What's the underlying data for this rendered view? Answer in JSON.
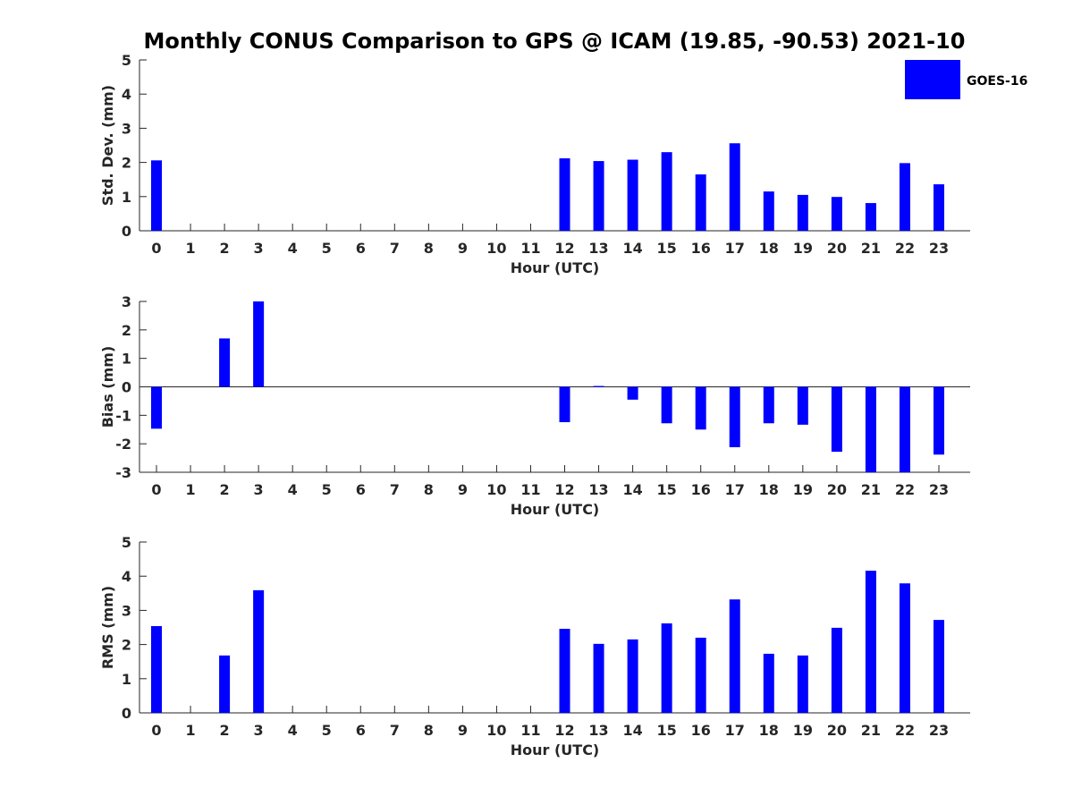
{
  "figure": {
    "title": "Monthly CONUS Comparison to GPS @ ICAM (19.85, -90.53) 2021-10",
    "legend": {
      "label": "GOES-16",
      "color": "#0000ff",
      "placement": "top-right"
    }
  },
  "chart_data": [
    {
      "type": "bar",
      "series": [
        {
          "name": "GOES-16",
          "color": "#0000ff",
          "values": [
            2.06,
            null,
            null,
            null,
            null,
            null,
            null,
            null,
            null,
            null,
            null,
            null,
            2.12,
            2.04,
            2.08,
            2.3,
            1.65,
            2.56,
            1.15,
            1.05,
            0.99,
            0.81,
            1.98,
            1.36
          ]
        }
      ],
      "categories": [
        "0",
        "1",
        "2",
        "3",
        "4",
        "5",
        "6",
        "7",
        "8",
        "9",
        "10",
        "11",
        "12",
        "13",
        "14",
        "15",
        "16",
        "17",
        "18",
        "19",
        "20",
        "21",
        "22",
        "23"
      ],
      "xlabel": "Hour (UTC)",
      "ylabel": "Std. Dev. (mm)",
      "ylim": [
        0,
        5
      ],
      "yticks": [
        "0",
        "1",
        "2",
        "3",
        "4",
        "5"
      ]
    },
    {
      "type": "bar",
      "series": [
        {
          "name": "GOES-16",
          "color": "#0000ff",
          "values": [
            -1.47,
            null,
            1.7,
            3.0,
            null,
            null,
            null,
            null,
            null,
            null,
            null,
            null,
            -1.24,
            0.03,
            -0.45,
            -1.28,
            -1.5,
            -2.12,
            -1.28,
            -1.33,
            -2.28,
            -3.0,
            -3.0,
            -2.38
          ]
        }
      ],
      "categories": [
        "0",
        "1",
        "2",
        "3",
        "4",
        "5",
        "6",
        "7",
        "8",
        "9",
        "10",
        "11",
        "12",
        "13",
        "14",
        "15",
        "16",
        "17",
        "18",
        "19",
        "20",
        "21",
        "22",
        "23"
      ],
      "xlabel": "Hour (UTC)",
      "ylabel": "Bias (mm)",
      "ylim": [
        -3,
        3
      ],
      "yticks": [
        "-3",
        "-2",
        "-1",
        "0",
        "1",
        "2",
        "3"
      ]
    },
    {
      "type": "bar",
      "series": [
        {
          "name": "GOES-16",
          "color": "#0000ff",
          "values": [
            2.54,
            null,
            1.68,
            3.59,
            null,
            null,
            null,
            null,
            null,
            null,
            null,
            null,
            2.46,
            2.02,
            2.15,
            2.62,
            2.2,
            3.32,
            1.73,
            1.68,
            2.49,
            4.16,
            3.79,
            2.72
          ]
        }
      ],
      "categories": [
        "0",
        "1",
        "2",
        "3",
        "4",
        "5",
        "6",
        "7",
        "8",
        "9",
        "10",
        "11",
        "12",
        "13",
        "14",
        "15",
        "16",
        "17",
        "18",
        "19",
        "20",
        "21",
        "22",
        "23"
      ],
      "xlabel": "Hour (UTC)",
      "ylabel": "RMS (mm)",
      "ylim": [
        0,
        5
      ],
      "yticks": [
        "0",
        "1",
        "2",
        "3",
        "4",
        "5"
      ]
    }
  ]
}
